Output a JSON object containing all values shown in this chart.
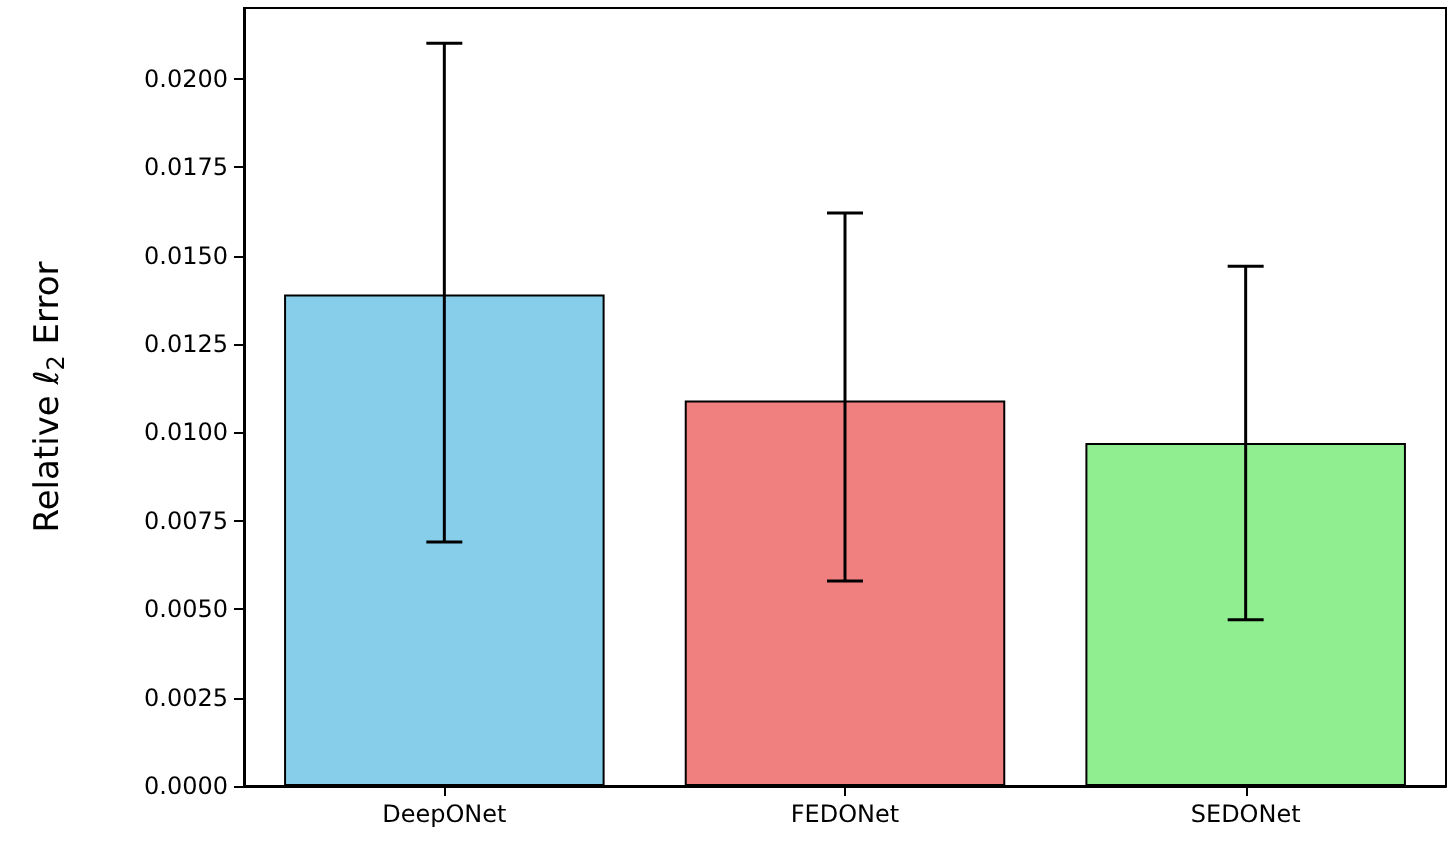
{
  "chart_data": {
    "type": "bar",
    "ylabel": "Relative ℓ$_{2}$ Error",
    "categories": [
      "DeepONet",
      "FEDONet",
      "SEDONet"
    ],
    "values": [
      0.0139,
      0.0109,
      0.0097
    ],
    "colors": [
      "#87ceeb",
      "#f08080",
      "#90ee90"
    ],
    "errors": [
      [
        0.0069,
        0.021
      ],
      [
        0.0058,
        0.0162
      ],
      [
        0.0047,
        0.0147
      ]
    ],
    "ylim": [
      0,
      0.022
    ],
    "yticks": [
      {
        "value": 0,
        "label": "0.0000"
      },
      {
        "value": 0.0025,
        "label": "0.0025"
      },
      {
        "value": 0.005,
        "label": "0.0050"
      },
      {
        "value": 0.0075,
        "label": "0.0075"
      },
      {
        "value": 0.01,
        "label": "0.0100"
      },
      {
        "value": 0.0125,
        "label": "0.0125"
      },
      {
        "value": 0.015,
        "label": "0.0150"
      },
      {
        "value": 0.0175,
        "label": "0.0175"
      },
      {
        "value": 0.02,
        "label": "0.0200"
      }
    ],
    "grid": false
  }
}
